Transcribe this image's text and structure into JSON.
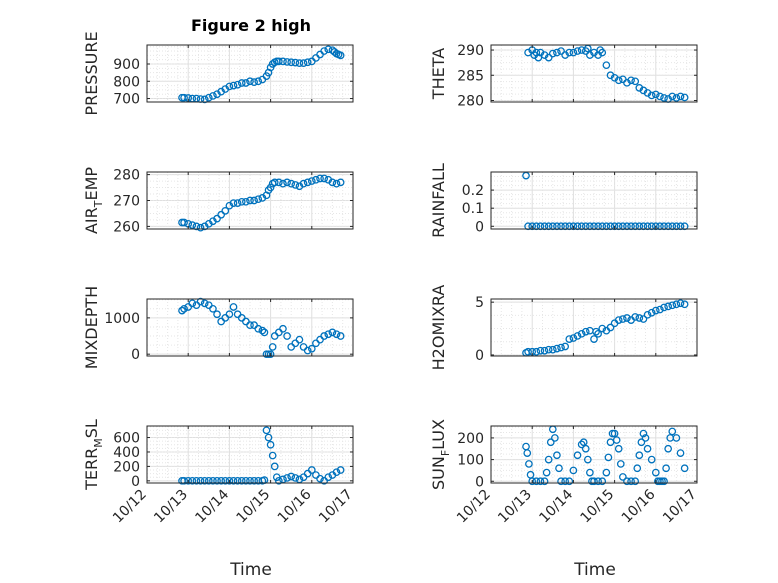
{
  "figure": {
    "title": "Figure 2 high",
    "xlabel": "Time"
  },
  "chart_data": [
    {
      "type": "scatter",
      "ylabel": "PRESSURE",
      "ylabel_sub": "",
      "xlim": [
        0,
        5
      ],
      "ylim": [
        680,
        1010
      ],
      "yticks": [
        700,
        800,
        900
      ],
      "xticks": [
        0,
        1,
        2,
        3,
        4,
        5
      ],
      "xticklabels": [],
      "series": [
        {
          "x": [
            0.85,
            0.9,
            1.0,
            1.1,
            1.2,
            1.3,
            1.4,
            1.5,
            1.6,
            1.7,
            1.8,
            1.9,
            2.0,
            2.1,
            2.2,
            2.3,
            2.4,
            2.5,
            2.6,
            2.7,
            2.8,
            2.9,
            2.95,
            3.0,
            3.05,
            3.1,
            3.15,
            3.2,
            3.3,
            3.4,
            3.5,
            3.6,
            3.7,
            3.8,
            3.9,
            4.0,
            4.1,
            4.2,
            4.3,
            4.4,
            4.5,
            4.55,
            4.6,
            4.65,
            4.7
          ],
          "y": [
            705,
            705,
            703,
            700,
            700,
            697,
            695,
            705,
            715,
            725,
            740,
            755,
            770,
            775,
            780,
            790,
            790,
            800,
            795,
            800,
            810,
            830,
            850,
            880,
            900,
            910,
            915,
            915,
            915,
            912,
            910,
            908,
            905,
            905,
            910,
            915,
            935,
            955,
            975,
            985,
            980,
            970,
            960,
            955,
            950
          ]
        }
      ]
    },
    {
      "type": "scatter",
      "ylabel": "THETA",
      "ylabel_sub": "",
      "xlim": [
        0,
        5
      ],
      "ylim": [
        279.7,
        291
      ],
      "yticks": [
        280,
        285,
        290
      ],
      "xticks": [
        0,
        1,
        2,
        3,
        4,
        5
      ],
      "xticklabels": [],
      "series": [
        {
          "x": [
            0.9,
            1.0,
            1.05,
            1.1,
            1.15,
            1.2,
            1.3,
            1.4,
            1.5,
            1.6,
            1.7,
            1.8,
            1.9,
            2.0,
            2.1,
            2.2,
            2.3,
            2.35,
            2.4,
            2.5,
            2.6,
            2.65,
            2.7,
            2.8,
            2.9,
            3.0,
            3.1,
            3.2,
            3.3,
            3.4,
            3.5,
            3.6,
            3.7,
            3.8,
            3.9,
            4.0,
            4.1,
            4.2,
            4.3,
            4.4,
            4.5,
            4.6,
            4.7
          ],
          "y": [
            289.5,
            290.0,
            289.0,
            289.5,
            288.5,
            289.5,
            289.0,
            288.5,
            289.3,
            289.5,
            289.8,
            289.0,
            289.5,
            289.5,
            289.8,
            290.0,
            289.8,
            290.3,
            289.0,
            289.5,
            289.0,
            290.0,
            289.5,
            287.0,
            285.0,
            284.5,
            284.0,
            284.2,
            283.5,
            284.0,
            283.8,
            282.5,
            282.0,
            281.5,
            281.0,
            281.2,
            280.8,
            280.5,
            280.3,
            280.8,
            280.5,
            280.8,
            280.6
          ]
        }
      ]
    },
    {
      "type": "scatter",
      "ylabel": "AIR",
      "ylabel_sub": "T",
      "ylabel_suffix": "EMP",
      "xlim": [
        0,
        5
      ],
      "ylim": [
        259,
        281
      ],
      "yticks": [
        260,
        270,
        280
      ],
      "xticks": [
        0,
        1,
        2,
        3,
        4,
        5
      ],
      "xticklabels": [],
      "series": [
        {
          "x": [
            0.85,
            0.9,
            1.0,
            1.1,
            1.2,
            1.3,
            1.4,
            1.5,
            1.6,
            1.7,
            1.8,
            1.9,
            2.0,
            2.1,
            2.2,
            2.3,
            2.4,
            2.5,
            2.6,
            2.7,
            2.8,
            2.9,
            2.95,
            3.0,
            3.05,
            3.1,
            3.2,
            3.3,
            3.4,
            3.5,
            3.6,
            3.7,
            3.8,
            3.9,
            4.0,
            4.1,
            4.2,
            4.3,
            4.4,
            4.5,
            4.6,
            4.7
          ],
          "y": [
            261.5,
            261.5,
            261,
            260.5,
            260,
            259.5,
            260,
            261,
            262,
            263,
            264.5,
            266,
            268,
            269,
            269,
            269.5,
            269.5,
            270,
            270,
            270.5,
            271,
            272,
            274,
            275,
            276.5,
            277,
            277,
            276.5,
            277,
            276.5,
            276,
            275.5,
            276.5,
            277,
            277.5,
            278,
            278.5,
            278.5,
            278,
            277,
            276.5,
            277
          ]
        }
      ]
    },
    {
      "type": "scatter",
      "ylabel": "RAINFALL",
      "ylabel_sub": "",
      "xlim": [
        0,
        5
      ],
      "ylim": [
        -0.015,
        0.3
      ],
      "yticks": [
        0,
        0.1,
        0.2
      ],
      "xticks": [
        0,
        1,
        2,
        3,
        4,
        5
      ],
      "xticklabels": [],
      "series": [
        {
          "x": [
            0.85,
            0.9,
            1.0,
            1.1,
            1.2,
            1.3,
            1.4,
            1.5,
            1.6,
            1.7,
            1.8,
            1.9,
            2.0,
            2.1,
            2.2,
            2.3,
            2.4,
            2.5,
            2.6,
            2.7,
            2.8,
            2.9,
            3.0,
            3.1,
            3.2,
            3.3,
            3.4,
            3.5,
            3.6,
            3.7,
            3.8,
            3.9,
            4.0,
            4.1,
            4.2,
            4.3,
            4.4,
            4.5,
            4.6,
            4.7
          ],
          "y": [
            0.28,
            0,
            0,
            0,
            0,
            0,
            0,
            0,
            0,
            0,
            0,
            0,
            0,
            0,
            0,
            0,
            0,
            0,
            0,
            0,
            0,
            0,
            0,
            0,
            0,
            0,
            0,
            0,
            0,
            0,
            0,
            0,
            0,
            0,
            0,
            0,
            0,
            0,
            0,
            0
          ]
        }
      ]
    },
    {
      "type": "scatter",
      "ylabel": "MIXDEPTH",
      "ylabel_sub": "",
      "xlim": [
        0,
        5
      ],
      "ylim": [
        -50,
        1520
      ],
      "yticks": [
        0,
        1000
      ],
      "xticks": [
        0,
        1,
        2,
        3,
        4,
        5
      ],
      "xticklabels": [],
      "series": [
        {
          "x": [
            0.85,
            0.9,
            1.0,
            1.1,
            1.2,
            1.3,
            1.4,
            1.5,
            1.6,
            1.7,
            1.8,
            1.9,
            2.0,
            2.1,
            2.2,
            2.3,
            2.4,
            2.5,
            2.6,
            2.7,
            2.8,
            2.85,
            2.9,
            2.95,
            3.0,
            3.05,
            3.1,
            3.2,
            3.3,
            3.4,
            3.5,
            3.6,
            3.7,
            3.8,
            3.9,
            4.0,
            4.1,
            4.2,
            4.3,
            4.4,
            4.5,
            4.6,
            4.7
          ],
          "y": [
            1200,
            1250,
            1300,
            1400,
            1350,
            1450,
            1400,
            1350,
            1250,
            1100,
            900,
            1000,
            1100,
            1300,
            1100,
            1000,
            900,
            800,
            800,
            700,
            650,
            600,
            0,
            0,
            0,
            200,
            500,
            600,
            700,
            500,
            200,
            300,
            400,
            200,
            100,
            150,
            300,
            400,
            500,
            550,
            600,
            550,
            500
          ]
        }
      ]
    },
    {
      "type": "scatter",
      "ylabel": "H2OMIXRA",
      "ylabel_sub": "",
      "xlim": [
        0,
        5
      ],
      "ylim": [
        -0.1,
        5.3
      ],
      "yticks": [
        0,
        5
      ],
      "xticks": [
        0,
        1,
        2,
        3,
        4,
        5
      ],
      "xticklabels": [],
      "series": [
        {
          "x": [
            0.85,
            0.9,
            1.0,
            1.1,
            1.2,
            1.3,
            1.4,
            1.5,
            1.6,
            1.7,
            1.8,
            1.9,
            2.0,
            2.1,
            2.2,
            2.3,
            2.4,
            2.5,
            2.55,
            2.6,
            2.7,
            2.8,
            2.9,
            3.0,
            3.1,
            3.2,
            3.3,
            3.4,
            3.5,
            3.6,
            3.7,
            3.8,
            3.9,
            4.0,
            4.1,
            4.2,
            4.3,
            4.4,
            4.5,
            4.6,
            4.7
          ],
          "y": [
            0.2,
            0.3,
            0.3,
            0.3,
            0.4,
            0.4,
            0.5,
            0.5,
            0.6,
            0.7,
            0.8,
            1.5,
            1.6,
            1.8,
            2.0,
            2.2,
            2.3,
            1.5,
            2.2,
            2.0,
            2.5,
            2.3,
            2.6,
            3.0,
            3.3,
            3.4,
            3.5,
            3.3,
            3.6,
            3.5,
            3.4,
            3.8,
            4.0,
            4.2,
            4.3,
            4.5,
            4.6,
            4.7,
            4.8,
            4.9,
            4.8
          ]
        }
      ]
    },
    {
      "type": "scatter",
      "ylabel": "TERR",
      "ylabel_sub": "M",
      "ylabel_suffix": "SL",
      "xlim": [
        0,
        5
      ],
      "ylim": [
        -30,
        760
      ],
      "yticks": [
        0,
        200,
        400,
        600
      ],
      "xticks": [
        0,
        1,
        2,
        3,
        4,
        5
      ],
      "xticklabels": [
        "10/12",
        "10/13",
        "10/14",
        "10/15",
        "10/16",
        "10/17"
      ],
      "series": [
        {
          "x": [
            0.85,
            0.9,
            1.0,
            1.1,
            1.2,
            1.3,
            1.4,
            1.5,
            1.6,
            1.7,
            1.8,
            1.9,
            2.0,
            2.1,
            2.2,
            2.3,
            2.4,
            2.5,
            2.6,
            2.7,
            2.8,
            2.85,
            2.9,
            2.95,
            3.0,
            3.05,
            3.1,
            3.15,
            3.2,
            3.3,
            3.4,
            3.5,
            3.6,
            3.7,
            3.8,
            3.9,
            4.0,
            4.1,
            4.2,
            4.3,
            4.4,
            4.5,
            4.6,
            4.7
          ],
          "y": [
            0,
            0,
            0,
            0,
            0,
            0,
            0,
            0,
            0,
            0,
            0,
            0,
            0,
            0,
            0,
            0,
            0,
            0,
            0,
            0,
            0,
            10,
            700,
            600,
            500,
            350,
            200,
            50,
            0,
            20,
            40,
            60,
            40,
            20,
            50,
            100,
            150,
            80,
            30,
            0,
            50,
            80,
            120,
            150
          ]
        }
      ]
    },
    {
      "type": "scatter",
      "ylabel": "SUN",
      "ylabel_sub": "F",
      "ylabel_suffix": "LUX",
      "xlim": [
        0,
        5
      ],
      "ylim": [
        -8,
        255
      ],
      "yticks": [
        0,
        100,
        200
      ],
      "xticks": [
        0,
        1,
        2,
        3,
        4,
        5
      ],
      "xticklabels": [
        "10/12",
        "10/13",
        "10/14",
        "10/15",
        "10/16",
        "10/17"
      ],
      "series": [
        {
          "x": [
            0.85,
            0.88,
            0.92,
            0.96,
            1.0,
            1.1,
            1.2,
            1.3,
            1.35,
            1.4,
            1.45,
            1.5,
            1.55,
            1.6,
            1.65,
            1.7,
            1.8,
            1.9,
            2.0,
            2.1,
            2.2,
            2.25,
            2.3,
            2.35,
            2.4,
            2.45,
            2.5,
            2.6,
            2.7,
            2.8,
            2.85,
            2.9,
            2.95,
            3.0,
            3.05,
            3.1,
            3.15,
            3.2,
            3.3,
            3.4,
            3.5,
            3.55,
            3.6,
            3.65,
            3.7,
            3.75,
            3.8,
            3.9,
            4.0,
            4.05,
            4.1,
            4.15,
            4.2,
            4.25,
            4.3,
            4.35,
            4.4,
            4.5,
            4.6,
            4.7
          ],
          "y": [
            160,
            130,
            80,
            30,
            0,
            0,
            0,
            0,
            40,
            100,
            180,
            240,
            200,
            120,
            60,
            0,
            0,
            0,
            50,
            120,
            170,
            180,
            150,
            100,
            40,
            0,
            0,
            0,
            0,
            40,
            110,
            180,
            220,
            220,
            190,
            150,
            80,
            20,
            0,
            0,
            0,
            60,
            120,
            180,
            220,
            200,
            150,
            100,
            40,
            0,
            0,
            0,
            0,
            60,
            150,
            200,
            230,
            200,
            130,
            60
          ]
        }
      ]
    }
  ]
}
